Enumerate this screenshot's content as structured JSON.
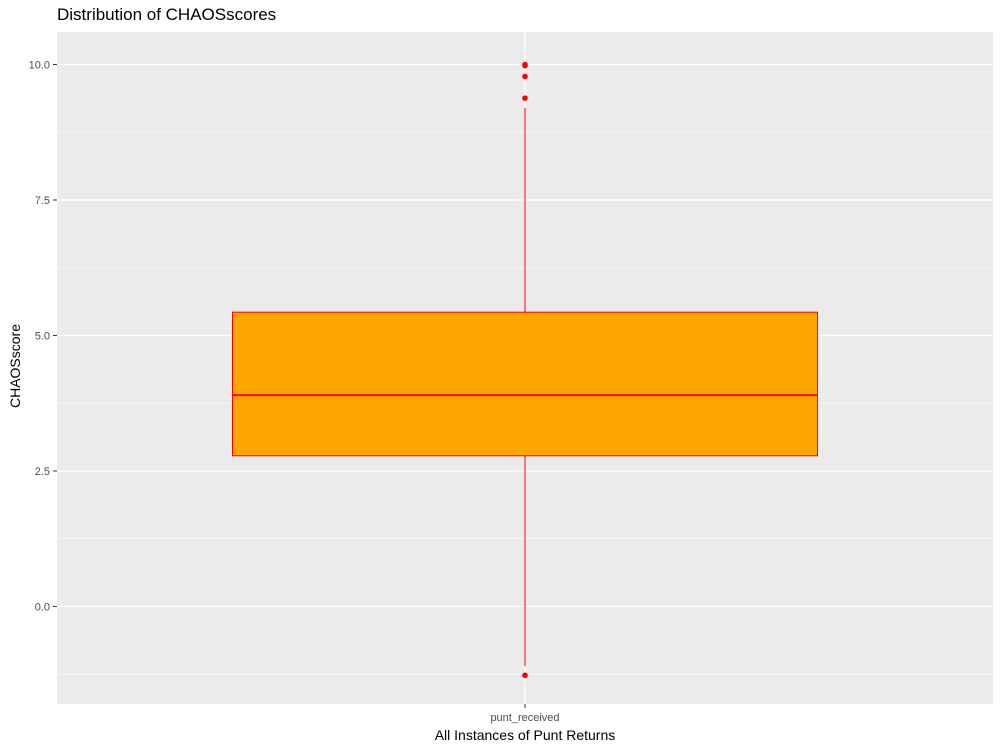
{
  "chart_data": {
    "type": "box",
    "title": "Distribution of CHAOSscores",
    "xlabel": "All Instances of Punt Returns",
    "ylabel": "CHAOSscore",
    "categories": [
      "punt_received"
    ],
    "ylim": [
      -1.8,
      10.6
    ],
    "yticks": [
      0.0,
      2.5,
      5.0,
      7.5,
      10.0
    ],
    "ytick_labels": [
      "0.0",
      "2.5",
      "5.0",
      "7.5",
      "10.0"
    ],
    "boxes": [
      {
        "category": "punt_received",
        "q1": 2.78,
        "median": 3.9,
        "q3": 5.43,
        "whisker_low": -1.1,
        "whisker_high": 9.2,
        "outliers": [
          10.0,
          9.98,
          9.78,
          9.38,
          -1.27
        ]
      }
    ],
    "colors": {
      "box_fill": "#FFA500",
      "box_line": "#FF0000",
      "outlier": "#FF0000",
      "panel_bg": "#EBEBEB",
      "grid": "#FFFFFF"
    },
    "grid": true
  }
}
